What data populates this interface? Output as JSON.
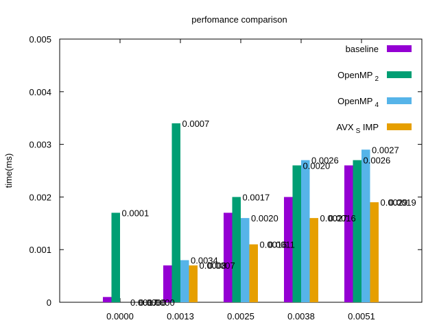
{
  "chart_data": {
    "type": "bar",
    "title": "perfomance comparison",
    "xlabel": "",
    "ylabel": "time(ms)",
    "ylim": [
      0,
      0.005
    ],
    "yticks": [
      "0",
      "0.001",
      "0.002",
      "0.003",
      "0.004",
      "0.005"
    ],
    "categories": [
      "0.0000",
      "0.0013",
      "0.0025",
      "0.0038",
      "0.0051"
    ],
    "series": [
      {
        "name": "baseline",
        "values": [
          0.0001,
          0.0007,
          0.0017,
          0.002,
          0.0026
        ],
        "color": "#9400d3",
        "legend_sub": ""
      },
      {
        "name": "OpenMP",
        "values": [
          0.0017,
          0.0034,
          0.002,
          0.0026,
          0.0027
        ],
        "color": "#009e73",
        "legend_sub": "2"
      },
      {
        "name": "OpenMP",
        "values": [
          0.0,
          0.0008,
          0.0016,
          0.0027,
          0.0029
        ],
        "color": "#56b4e9",
        "legend_sub": "4"
      },
      {
        "name": "AVX",
        "values": [
          0.0,
          0.0007,
          0.0011,
          0.0016,
          0.0019
        ],
        "color": "#e69f00",
        "legend_sub": "S",
        "legend_suffix": " IMP"
      }
    ],
    "data_labels": [
      "0.0001",
      "0.0017",
      "0.0000",
      "0.0000",
      "0.0007",
      "0.0034",
      "0.0008",
      "0.0007",
      "0.0017",
      "0.0020",
      "0.0016",
      "0.0011",
      "0.0020",
      "0.0026",
      "0.0027",
      "0.0016",
      "0.0026",
      "0.0027",
      "0.0029",
      "0.0019"
    ],
    "legend_position": "top-right",
    "grid": false
  }
}
